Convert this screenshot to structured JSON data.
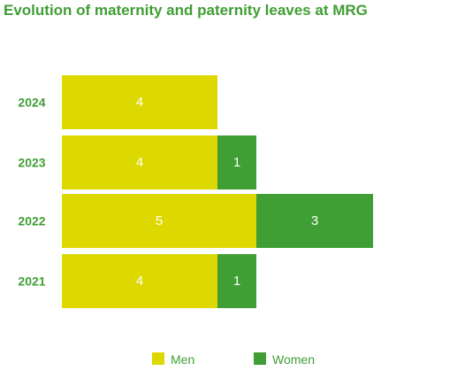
{
  "chart_data": {
    "type": "bar",
    "orientation": "horizontal",
    "stacked": true,
    "title": "Evolution of maternity and paternity leaves at MRG",
    "categories": [
      "2024",
      "2023",
      "2022",
      "2021"
    ],
    "series": [
      {
        "name": "Men",
        "values": [
          4,
          4,
          5,
          4
        ],
        "color": "#dcd800"
      },
      {
        "name": "Women",
        "values": [
          0,
          1,
          3,
          1
        ],
        "color": "#3f9e34"
      }
    ],
    "xlim": [
      0,
      8
    ],
    "grid": false,
    "legend_position": "bottom",
    "colors": {
      "title": "#3f9e34",
      "year_label": "#3f9e34",
      "bar_label": "#ffffff",
      "legend_text": "#3f9e34"
    }
  }
}
